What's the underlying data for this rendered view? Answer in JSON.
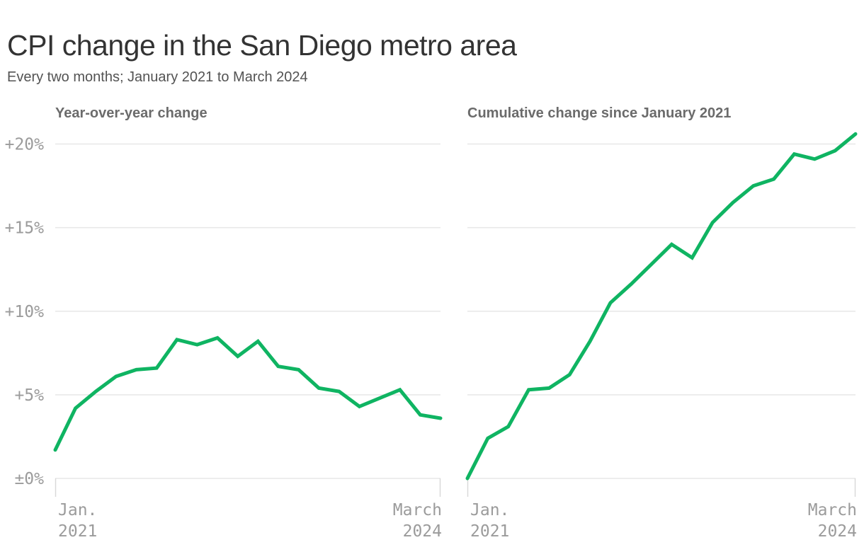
{
  "header": {
    "title": "CPI change in the San Diego metro area",
    "subtitle": "Every two months; January 2021 to March 2024"
  },
  "colors": {
    "line": "#0fb462",
    "grid": "#e7e7e7",
    "axis_tick": "#d9d9d9",
    "axis_label": "#9b9b9b",
    "chart_title": "#6b6b6b",
    "title": "#333333",
    "subtitle": "#535353",
    "background": "#ffffff"
  },
  "chart_data": [
    {
      "type": "line",
      "title": "Year-over-year change",
      "unit": "%",
      "categories": [
        "Jan 2021",
        "Mar 2021",
        "May 2021",
        "Jul 2021",
        "Sep 2021",
        "Nov 2021",
        "Jan 2022",
        "Mar 2022",
        "May 2022",
        "Jul 2022",
        "Sep 2022",
        "Nov 2022",
        "Jan 2023",
        "Mar 2023",
        "May 2023",
        "Jul 2023",
        "Sep 2023",
        "Nov 2023",
        "Jan 2024",
        "Mar 2024"
      ],
      "values": [
        1.7,
        4.2,
        5.2,
        6.1,
        6.5,
        6.6,
        8.3,
        8.0,
        8.4,
        7.3,
        8.2,
        6.7,
        6.5,
        5.4,
        5.2,
        4.3,
        4.8,
        5.3,
        3.8,
        3.6
      ],
      "y_ticks": [
        {
          "value": 0,
          "label": "±0%"
        },
        {
          "value": 5,
          "label": "+5%"
        },
        {
          "value": 10,
          "label": "+10%"
        },
        {
          "value": 15,
          "label": "+15%"
        },
        {
          "value": 20,
          "label": "+20%"
        }
      ],
      "ylim": [
        0,
        21.7
      ],
      "x_start_label": [
        "Jan.",
        "2021"
      ],
      "x_end_label": [
        "March",
        "2024"
      ],
      "grid": true,
      "legend": false,
      "show_y_labels": true
    },
    {
      "type": "line",
      "title": "Cumulative change since January 2021",
      "unit": "%",
      "categories": [
        "Jan 2021",
        "Mar 2021",
        "May 2021",
        "Jul 2021",
        "Sep 2021",
        "Nov 2021",
        "Jan 2022",
        "Mar 2022",
        "May 2022",
        "Jul 2022",
        "Sep 2022",
        "Nov 2022",
        "Jan 2023",
        "Mar 2023",
        "May 2023",
        "Jul 2023",
        "Sep 2023",
        "Nov 2023",
        "Jan 2024",
        "Mar 2024"
      ],
      "values": [
        0.0,
        2.4,
        3.1,
        5.3,
        5.4,
        6.2,
        8.2,
        10.5,
        11.6,
        12.8,
        14.0,
        13.2,
        15.3,
        16.5,
        17.5,
        17.9,
        19.4,
        19.1,
        19.6,
        20.6
      ],
      "y_ticks": [
        {
          "value": 0,
          "label": "±0%"
        },
        {
          "value": 5,
          "label": "+5%"
        },
        {
          "value": 10,
          "label": "+10%"
        },
        {
          "value": 15,
          "label": "+15%"
        },
        {
          "value": 20,
          "label": "+20%"
        }
      ],
      "ylim": [
        0,
        21.7
      ],
      "x_start_label": [
        "Jan.",
        "2021"
      ],
      "x_end_label": [
        "March",
        "2024"
      ],
      "grid": true,
      "legend": false,
      "show_y_labels": false
    }
  ]
}
